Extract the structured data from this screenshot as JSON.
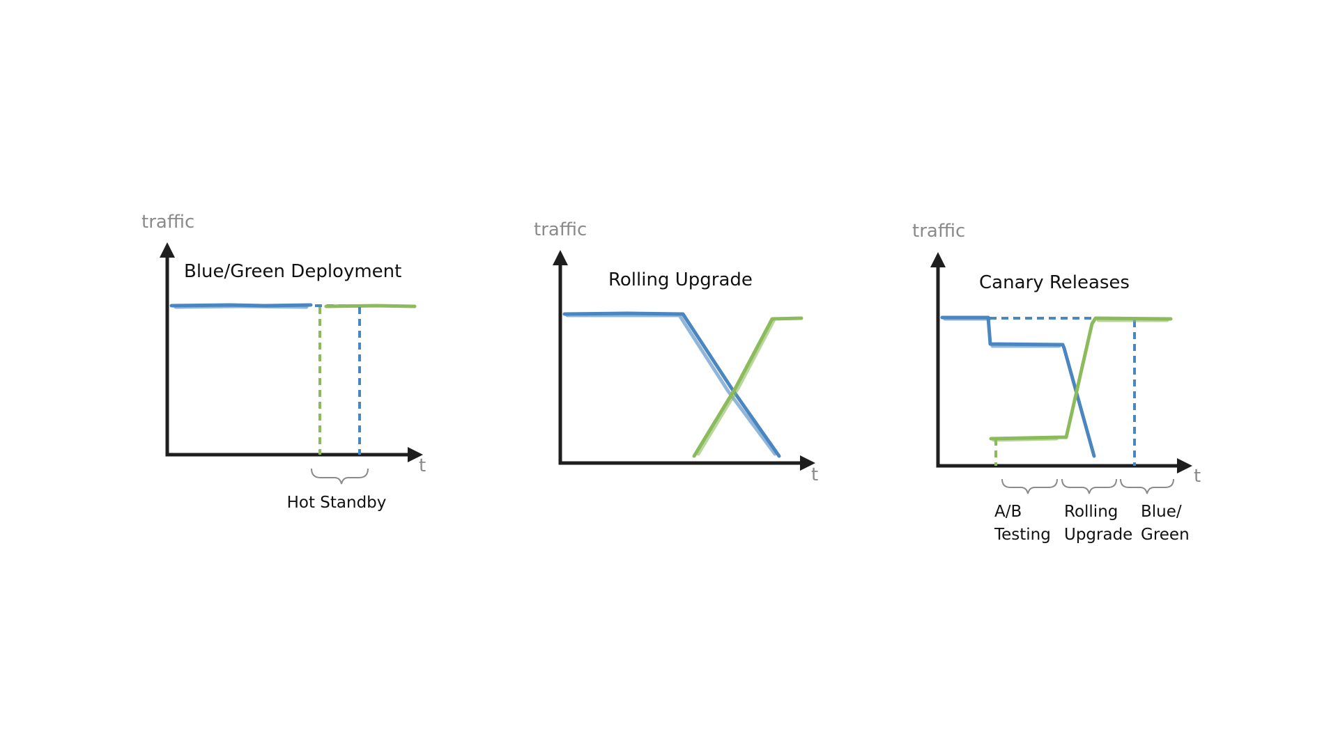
{
  "colors": {
    "blue": "#4a86c0",
    "green": "#8bbb5a",
    "axis": "#1e1e1e",
    "label_gray": "#8a8a8a"
  },
  "axis_labels": {
    "y": "traffic",
    "x": "t"
  },
  "panels": [
    {
      "id": "blue-green",
      "title": "Blue/Green Deployment",
      "annotations": [
        "Hot Standby"
      ]
    },
    {
      "id": "rolling-upgrade",
      "title": "Rolling Upgrade",
      "annotations": []
    },
    {
      "id": "canary-releases",
      "title": "Canary Releases",
      "annotations": [
        {
          "line1": "A/B",
          "line2": "Testing"
        },
        {
          "line1": "Rolling",
          "line2": "Upgrade"
        },
        {
          "line1": "Blue/",
          "line2": "Green"
        }
      ]
    }
  ]
}
